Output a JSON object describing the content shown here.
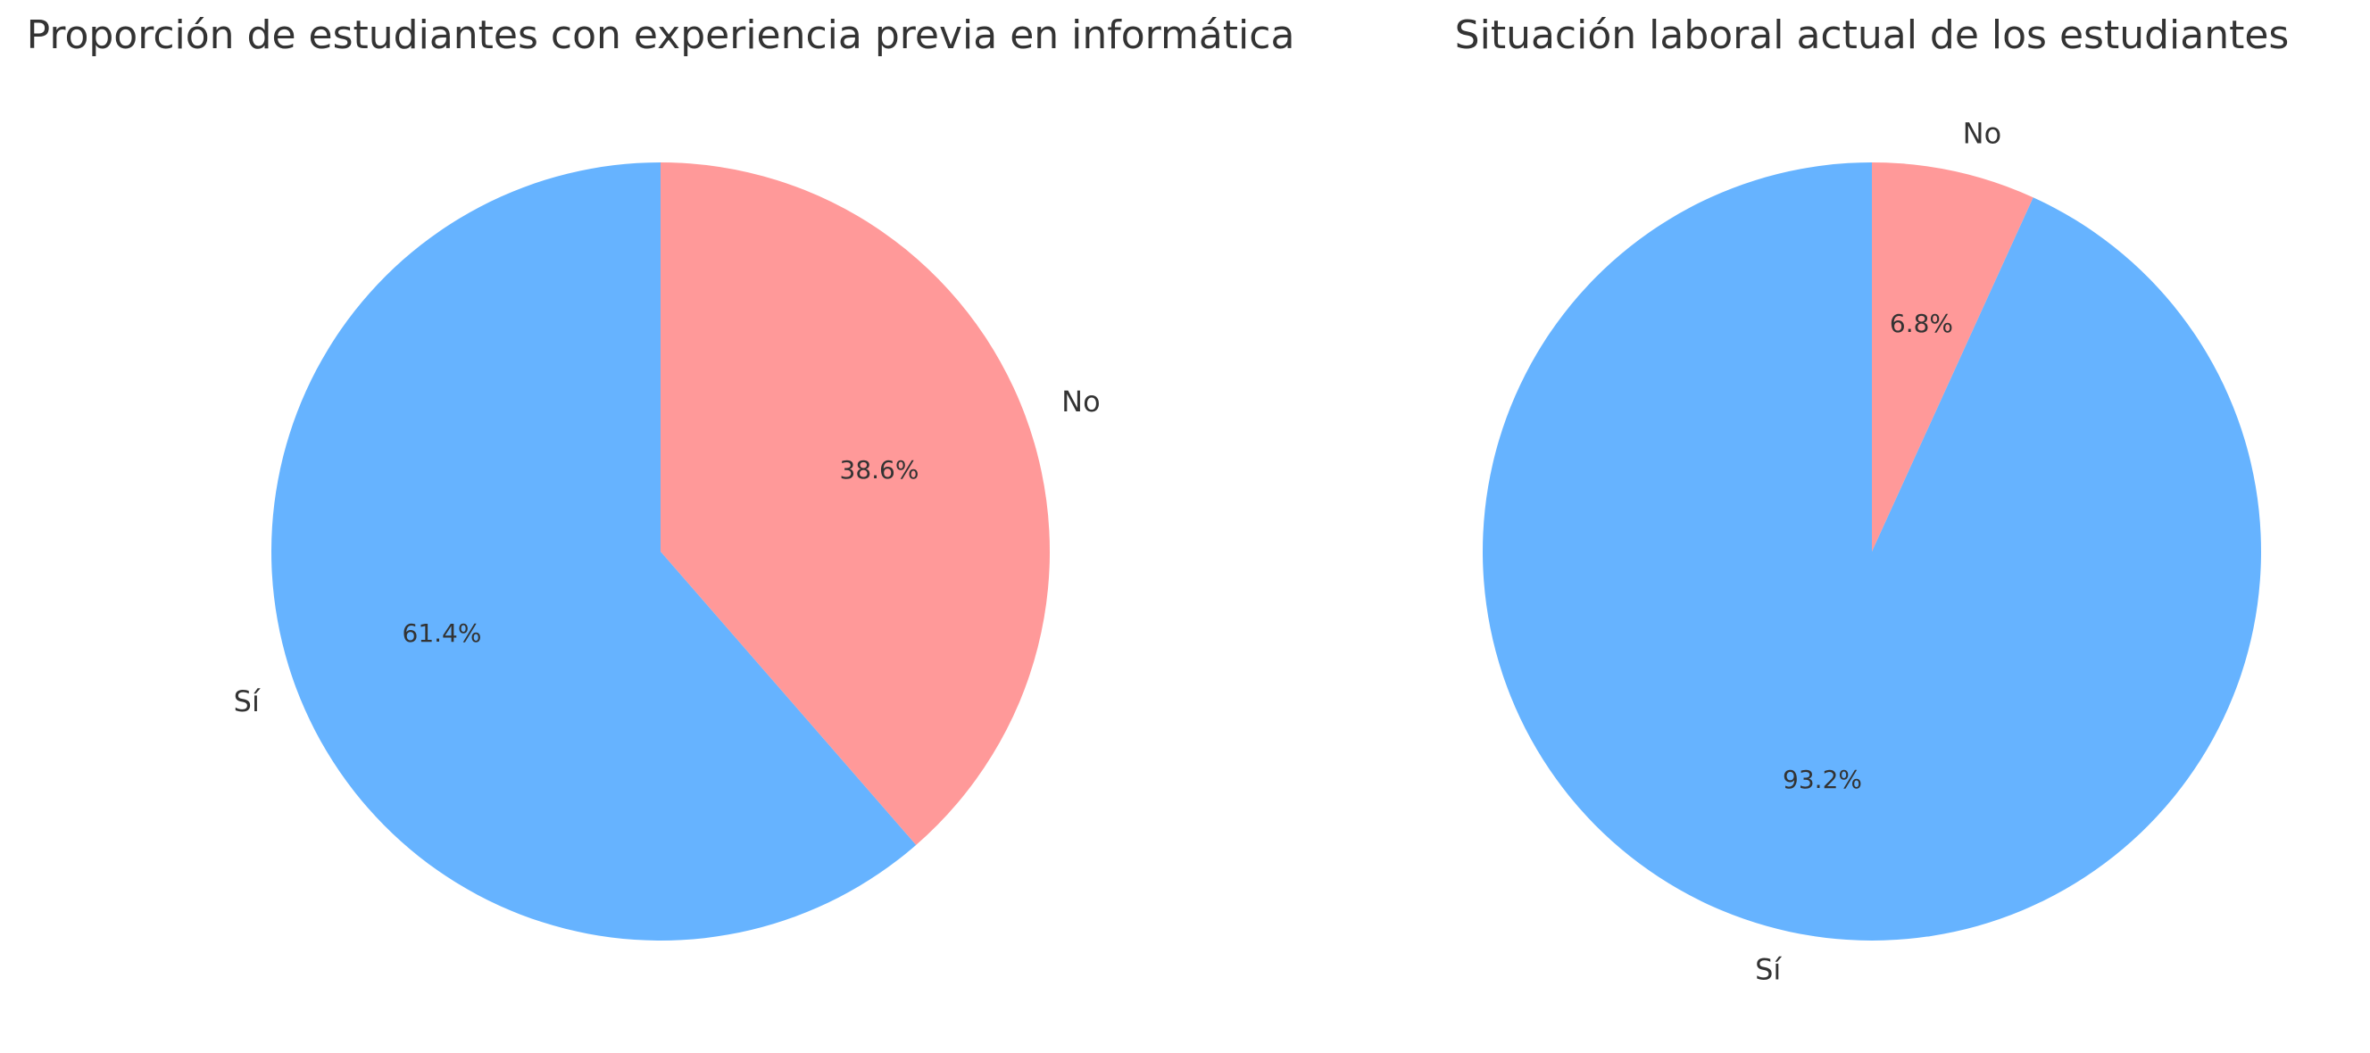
{
  "chart_data": [
    {
      "type": "pie",
      "title": "Proporción de estudiantes con experiencia previa en informática",
      "labels": [
        "Sí",
        "No"
      ],
      "values": [
        61.4,
        38.6
      ],
      "value_labels": [
        "61.4%",
        "38.6%"
      ],
      "colors": [
        "#66b3ff",
        "#ff9999"
      ],
      "start_angle_deg": 90,
      "direction": "counterclockwise"
    },
    {
      "type": "pie",
      "title": "Situación laboral actual de los estudiantes",
      "labels": [
        "Sí",
        "No"
      ],
      "values": [
        93.2,
        6.8
      ],
      "value_labels": [
        "93.2%",
        "6.8%"
      ],
      "colors": [
        "#66b3ff",
        "#ff9999"
      ],
      "start_angle_deg": 90,
      "direction": "counterclockwise"
    }
  ]
}
